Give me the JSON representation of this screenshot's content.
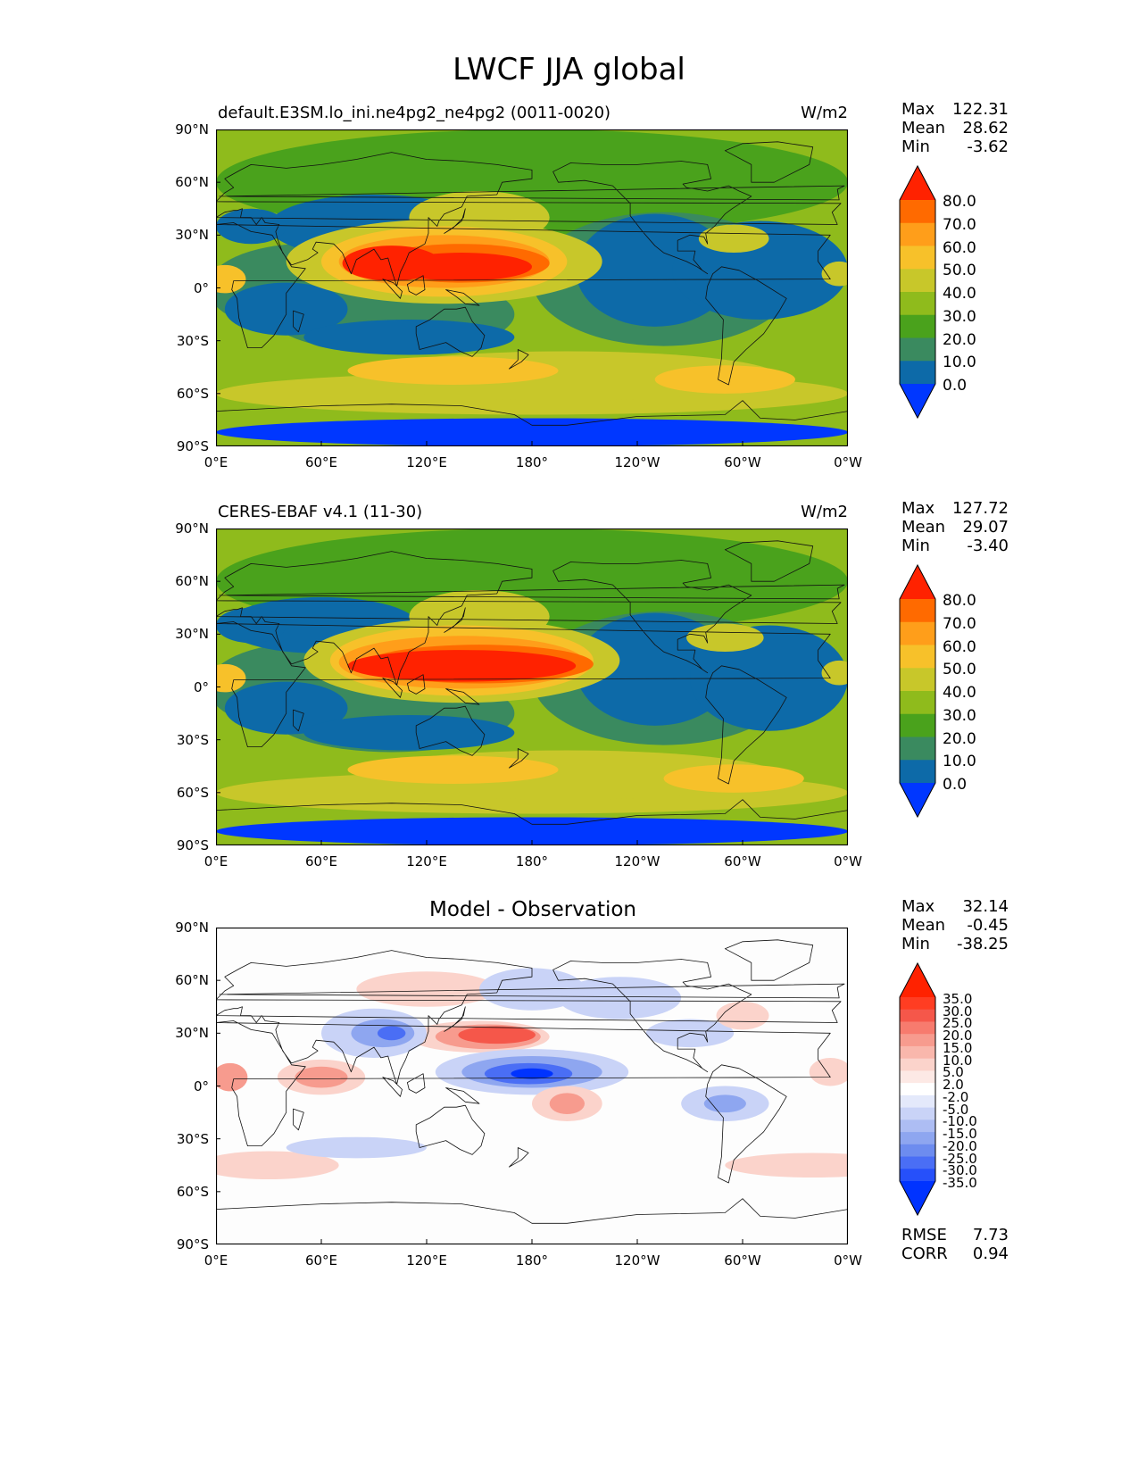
{
  "figure_title": "LWCF JJA global",
  "panels": [
    {
      "id": "model",
      "left_title": "default.E3SM.lo_ini.ne4pg2_ne4pg2 (0011-0020)",
      "center_title": "",
      "units": "W/m2",
      "stats": [
        {
          "label": "Max",
          "value": "122.31"
        },
        {
          "label": "Mean",
          "value": "28.62"
        },
        {
          "label": "Min",
          "value": "-3.62"
        }
      ],
      "colorbar_labels": [
        "80.0",
        "70.0",
        "60.0",
        "50.0",
        "40.0",
        "30.0",
        "20.0",
        "10.0",
        "0.0"
      ],
      "colorbar_colors": [
        "#ff2200",
        "#ff6a00",
        "#ff9e1a",
        "#f7c12a",
        "#c8c72a",
        "#8fbb1c",
        "#4aa21c",
        "#3a8a5f",
        "#0d6aa8",
        "#0037ff"
      ],
      "background_color": "#8fbb1c"
    },
    {
      "id": "obs",
      "left_title": "CERES-EBAF v4.1 (11-30)",
      "center_title": "",
      "units": "W/m2",
      "stats": [
        {
          "label": "Max",
          "value": "127.72"
        },
        {
          "label": "Mean",
          "value": "29.07"
        },
        {
          "label": "Min",
          "value": "-3.40"
        }
      ],
      "colorbar_labels": [
        "80.0",
        "70.0",
        "60.0",
        "50.0",
        "40.0",
        "30.0",
        "20.0",
        "10.0",
        "0.0"
      ],
      "colorbar_colors": [
        "#ff2200",
        "#ff6a00",
        "#ff9e1a",
        "#f7c12a",
        "#c8c72a",
        "#8fbb1c",
        "#4aa21c",
        "#3a8a5f",
        "#0d6aa8",
        "#0037ff"
      ],
      "background_color": "#8fbb1c"
    },
    {
      "id": "diff",
      "left_title": "",
      "center_title": "Model - Observation",
      "units": "",
      "stats": [
        {
          "label": "Max",
          "value": "32.14"
        },
        {
          "label": "Mean",
          "value": "-0.45"
        },
        {
          "label": "Min",
          "value": "-38.25"
        }
      ],
      "colorbar_labels": [
        "35.0",
        "30.0",
        "25.0",
        "20.0",
        "15.0",
        "10.0",
        "5.0",
        "2.0",
        "-2.0",
        "-5.0",
        "-10.0",
        "-15.0",
        "-20.0",
        "-25.0",
        "-30.0",
        "-35.0"
      ],
      "colorbar_colors": [
        "#ff2200",
        "#ff3d22",
        "#f5574a",
        "#f77b6e",
        "#f79b8e",
        "#f9b7ac",
        "#fbd3cb",
        "#fde9e5",
        "#ffffff",
        "#e4e9fb",
        "#c9d3f7",
        "#adbdf3",
        "#8ea6f0",
        "#6d8cef",
        "#4a6ef5",
        "#2650fa",
        "#0033ff"
      ],
      "background_color": "#fdfdfd",
      "metrics": [
        {
          "label": "RMSE",
          "value": "7.73"
        },
        {
          "label": "CORR",
          "value": "0.94"
        }
      ]
    }
  ],
  "axes": {
    "y_ticks": [
      "90°N",
      "60°N",
      "30°N",
      "0°",
      "30°S",
      "60°S",
      "90°S"
    ],
    "x_ticks": [
      "0°E",
      "60°E",
      "120°E",
      "180°",
      "120°W",
      "60°W",
      "0°W"
    ],
    "lat_range": [
      -90,
      90
    ],
    "lon_range": [
      0,
      360
    ]
  }
}
